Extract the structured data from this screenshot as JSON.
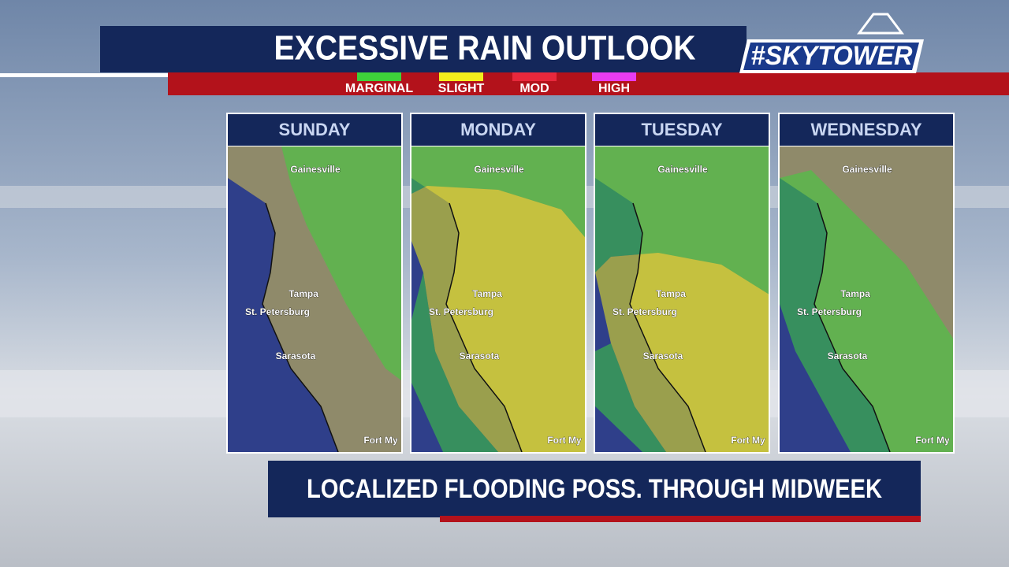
{
  "header": {
    "title": "EXCESSIVE RAIN OUTLOOK",
    "logo": "#SKYTOWER"
  },
  "legend": [
    {
      "label": "MARGINAL",
      "color": "#3ed23a"
    },
    {
      "label": "SLIGHT",
      "color": "#f2ee1c"
    },
    {
      "label": "MOD",
      "color": "#e8283c"
    },
    {
      "label": "HIGH",
      "color": "#e83cf0"
    }
  ],
  "panels": [
    {
      "day": "SUNDAY",
      "cities": [
        "Gainesville",
        "Tampa",
        "St. Petersburg",
        "Sarasota",
        "Fort My"
      ]
    },
    {
      "day": "MONDAY",
      "cities": [
        "Gainesville",
        "Tampa",
        "St. Petersburg",
        "Sarasota",
        "Fort My"
      ]
    },
    {
      "day": "TUESDAY",
      "cities": [
        "Gainesville",
        "Tampa",
        "St. Petersburg",
        "Sarasota",
        "Fort My"
      ]
    },
    {
      "day": "WEDNESDAY",
      "cities": [
        "Gainesville",
        "Tampa",
        "St. Petersburg",
        "Sarasota",
        "Fort My"
      ]
    }
  ],
  "footer": {
    "text": "LOCALIZED FLOODING POSS. THROUGH MIDWEEK"
  }
}
